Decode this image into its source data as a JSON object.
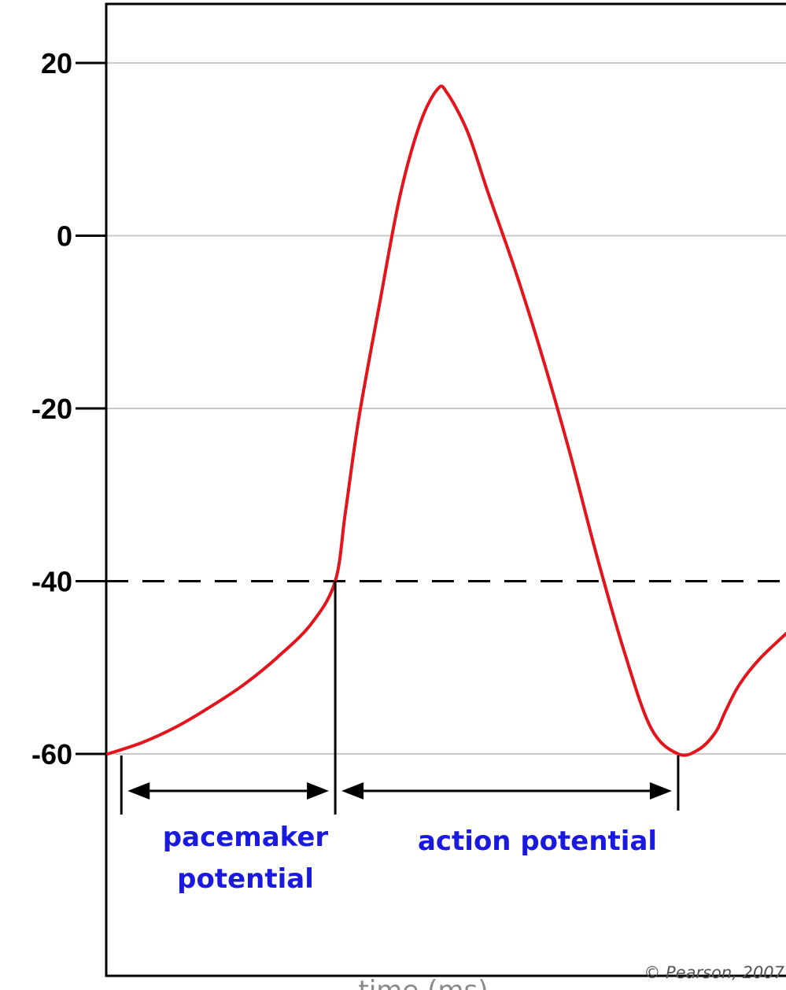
{
  "chart_data": {
    "type": "line",
    "title": "",
    "xlabel": "time (ms)",
    "ylabel": "",
    "ylim": [
      -82,
      26
    ],
    "xlim": [
      0,
      100
    ],
    "y_ticks": [
      20,
      0,
      -20,
      -40,
      -60
    ],
    "y_tick_labels": [
      "20",
      "0",
      "-20",
      "-40",
      "-60"
    ],
    "grid": true,
    "threshold": {
      "value": -40,
      "style": "dashed"
    },
    "series": [
      {
        "color": "#e3141b",
        "x": [
          0,
          5,
          10,
          15,
          20,
          25,
          30,
          33.5,
          35,
          37,
          40,
          43,
          46,
          48.6,
          50,
          53,
          56,
          60,
          64,
          68,
          72,
          76,
          80,
          84,
          87,
          89.5,
          91,
          93,
          96,
          100
        ],
        "y": [
          -60,
          -58.7,
          -56.9,
          -54.6,
          -52,
          -48.8,
          -44.9,
          -40,
          -32,
          -21,
          -8,
          4.5,
          13,
          17,
          16.5,
          12,
          5,
          -4,
          -14,
          -25,
          -37,
          -48,
          -57,
          -60,
          -59.5,
          -57.5,
          -55,
          -52,
          -49,
          -46
        ]
      }
    ],
    "ranges": [
      {
        "label": "pacemaker potential",
        "line1": "pacemaker",
        "line2": "potential",
        "from": 2,
        "to": 33.5
      },
      {
        "label": "action potential",
        "from": 33.5,
        "to": 84
      }
    ],
    "credit": "© Pearson, 2007"
  }
}
